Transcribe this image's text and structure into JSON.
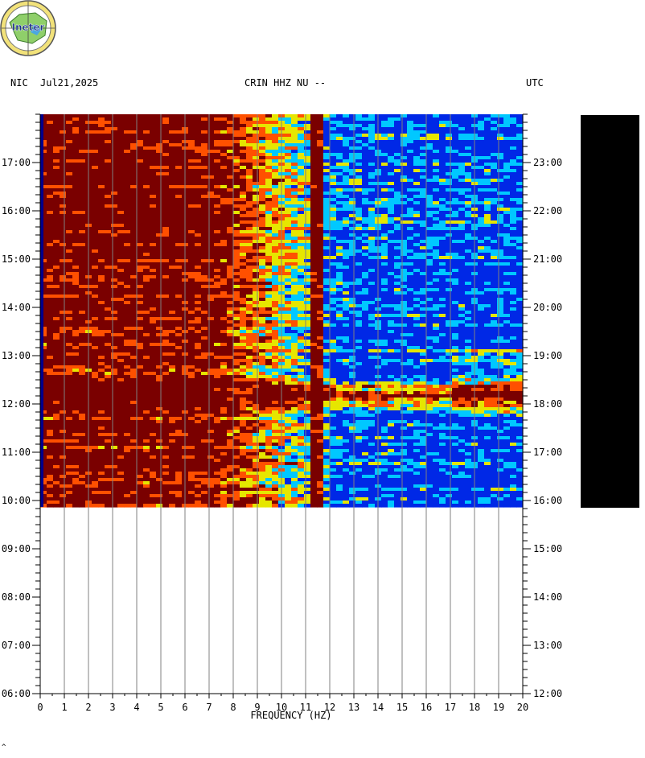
{
  "header": {
    "station_region": "NIC",
    "date": "Jul21,2025",
    "channel": "CRIN HHZ NU --",
    "timezone": "UTC"
  },
  "logo": {
    "text": "Ineter"
  },
  "colors": {
    "low": "#0028e6",
    "mid_low": "#00c8ff",
    "mid": "#e6e600",
    "high": "#ff5000",
    "max": "#7a0000"
  },
  "chart_data": {
    "type": "heatmap",
    "title": "CRIN HHZ NU --",
    "xlabel": "FREQUENCY (HZ)",
    "xlim": [
      0,
      20
    ],
    "x_ticks": [
      "0",
      "1",
      "2",
      "3",
      "4",
      "5",
      "6",
      "7",
      "8",
      "9",
      "10",
      "11",
      "12",
      "13",
      "14",
      "15",
      "16",
      "17",
      "18",
      "19",
      "20"
    ],
    "y_left_ticks": [
      "06:00",
      "07:00",
      "08:00",
      "09:00",
      "10:00",
      "11:00",
      "12:00",
      "13:00",
      "14:00",
      "15:00",
      "16:00",
      "17:00"
    ],
    "y_right_ticks": [
      "12:00",
      "13:00",
      "14:00",
      "15:00",
      "16:00",
      "17:00",
      "18:00",
      "19:00",
      "20:00",
      "21:00",
      "22:00",
      "23:00"
    ],
    "local_time_range": [
      "06:00",
      "18:00"
    ],
    "data_end_local": "09:52",
    "notable_features": {
      "persistent_line_hz": 11.5,
      "broadband_event_local": "12:10",
      "high_energy_below_hz": 8
    },
    "grid": true
  },
  "footer": {
    "mark": "^"
  }
}
